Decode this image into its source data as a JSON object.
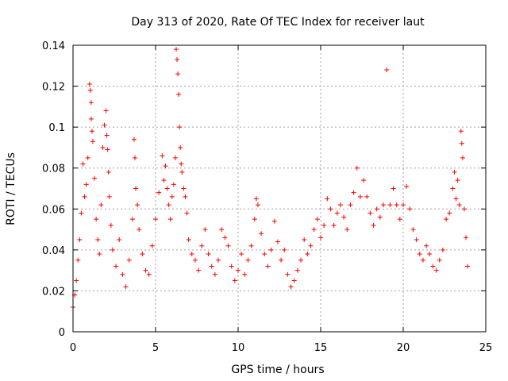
{
  "chart_data": {
    "type": "scatter",
    "title": "Day 313 of 2020, Rate Of TEC Index for receiver laut",
    "xlabel": "GPS time / hours",
    "ylabel": "ROTI / TECUs",
    "xlim": [
      0,
      25
    ],
    "ylim": [
      0,
      0.14
    ],
    "xticks": [
      0,
      5,
      10,
      15,
      20,
      25
    ],
    "xtick_labels": [
      "0",
      "5",
      "10",
      "15",
      "20",
      "25"
    ],
    "yticks": [
      0,
      0.02,
      0.04,
      0.06,
      0.08,
      0.1,
      0.12,
      0.14
    ],
    "ytick_labels": [
      "0",
      "0.02",
      "0.04",
      "0.06",
      "0.08",
      "0.1",
      "0.12",
      "0.14"
    ],
    "grid": true,
    "marker": "+",
    "color": "#ff0000",
    "series": [
      {
        "name": "ROTI",
        "points": [
          [
            0.0,
            0.012
          ],
          [
            0.1,
            0.018
          ],
          [
            0.2,
            0.025
          ],
          [
            0.3,
            0.035
          ],
          [
            0.4,
            0.045
          ],
          [
            0.5,
            0.058
          ],
          [
            0.6,
            0.082
          ],
          [
            0.7,
            0.066
          ],
          [
            0.8,
            0.072
          ],
          [
            0.9,
            0.085
          ],
          [
            1.0,
            0.121
          ],
          [
            1.05,
            0.118
          ],
          [
            1.1,
            0.104
          ],
          [
            1.1,
            0.112
          ],
          [
            1.15,
            0.098
          ],
          [
            1.2,
            0.093
          ],
          [
            1.3,
            0.075
          ],
          [
            1.4,
            0.055
          ],
          [
            1.5,
            0.045
          ],
          [
            1.6,
            0.038
          ],
          [
            1.7,
            0.062
          ],
          [
            1.8,
            0.09
          ],
          [
            1.9,
            0.101
          ],
          [
            2.0,
            0.108
          ],
          [
            2.05,
            0.096
          ],
          [
            2.1,
            0.089
          ],
          [
            2.15,
            0.078
          ],
          [
            2.2,
            0.066
          ],
          [
            2.3,
            0.052
          ],
          [
            2.4,
            0.04
          ],
          [
            2.6,
            0.032
          ],
          [
            2.8,
            0.045
          ],
          [
            3.0,
            0.028
          ],
          [
            3.2,
            0.022
          ],
          [
            3.4,
            0.035
          ],
          [
            3.6,
            0.055
          ],
          [
            3.7,
            0.094
          ],
          [
            3.75,
            0.085
          ],
          [
            3.8,
            0.07
          ],
          [
            3.9,
            0.062
          ],
          [
            4.0,
            0.05
          ],
          [
            4.2,
            0.038
          ],
          [
            4.4,
            0.03
          ],
          [
            4.6,
            0.028
          ],
          [
            4.8,
            0.042
          ],
          [
            5.0,
            0.055
          ],
          [
            5.2,
            0.068
          ],
          [
            5.4,
            0.086
          ],
          [
            5.5,
            0.074
          ],
          [
            5.6,
            0.081
          ],
          [
            5.7,
            0.07
          ],
          [
            5.8,
            0.062
          ],
          [
            5.9,
            0.055
          ],
          [
            6.0,
            0.066
          ],
          [
            6.1,
            0.072
          ],
          [
            6.2,
            0.085
          ],
          [
            6.25,
            0.138
          ],
          [
            6.3,
            0.133
          ],
          [
            6.35,
            0.126
          ],
          [
            6.4,
            0.116
          ],
          [
            6.45,
            0.1
          ],
          [
            6.5,
            0.09
          ],
          [
            6.55,
            0.082
          ],
          [
            6.6,
            0.078
          ],
          [
            6.7,
            0.07
          ],
          [
            6.8,
            0.066
          ],
          [
            6.9,
            0.058
          ],
          [
            7.0,
            0.045
          ],
          [
            7.2,
            0.038
          ],
          [
            7.4,
            0.035
          ],
          [
            7.6,
            0.03
          ],
          [
            7.8,
            0.042
          ],
          [
            8.0,
            0.05
          ],
          [
            8.2,
            0.038
          ],
          [
            8.4,
            0.032
          ],
          [
            8.6,
            0.028
          ],
          [
            8.8,
            0.035
          ],
          [
            9.0,
            0.05
          ],
          [
            9.2,
            0.046
          ],
          [
            9.4,
            0.042
          ],
          [
            9.6,
            0.032
          ],
          [
            9.8,
            0.025
          ],
          [
            10.0,
            0.03
          ],
          [
            10.2,
            0.038
          ],
          [
            10.4,
            0.028
          ],
          [
            10.6,
            0.035
          ],
          [
            10.8,
            0.042
          ],
          [
            11.0,
            0.055
          ],
          [
            11.1,
            0.065
          ],
          [
            11.2,
            0.062
          ],
          [
            11.4,
            0.048
          ],
          [
            11.6,
            0.038
          ],
          [
            11.8,
            0.032
          ],
          [
            12.0,
            0.04
          ],
          [
            12.2,
            0.054
          ],
          [
            12.4,
            0.044
          ],
          [
            12.6,
            0.035
          ],
          [
            12.8,
            0.04
          ],
          [
            13.0,
            0.028
          ],
          [
            13.2,
            0.022
          ],
          [
            13.4,
            0.025
          ],
          [
            13.6,
            0.03
          ],
          [
            13.8,
            0.035
          ],
          [
            14.0,
            0.045
          ],
          [
            14.2,
            0.038
          ],
          [
            14.4,
            0.042
          ],
          [
            14.6,
            0.05
          ],
          [
            14.8,
            0.055
          ],
          [
            15.0,
            0.046
          ],
          [
            15.2,
            0.052
          ],
          [
            15.4,
            0.065
          ],
          [
            15.6,
            0.06
          ],
          [
            15.8,
            0.052
          ],
          [
            16.0,
            0.058
          ],
          [
            16.2,
            0.062
          ],
          [
            16.4,
            0.056
          ],
          [
            16.6,
            0.05
          ],
          [
            16.8,
            0.062
          ],
          [
            17.0,
            0.068
          ],
          [
            17.2,
            0.08
          ],
          [
            17.4,
            0.066
          ],
          [
            17.6,
            0.074
          ],
          [
            17.8,
            0.066
          ],
          [
            18.0,
            0.058
          ],
          [
            18.2,
            0.052
          ],
          [
            18.4,
            0.06
          ],
          [
            18.6,
            0.056
          ],
          [
            18.8,
            0.062
          ],
          [
            19.0,
            0.128
          ],
          [
            19.2,
            0.062
          ],
          [
            19.4,
            0.07
          ],
          [
            19.6,
            0.062
          ],
          [
            19.8,
            0.055
          ],
          [
            20.0,
            0.062
          ],
          [
            20.2,
            0.071
          ],
          [
            20.4,
            0.06
          ],
          [
            20.6,
            0.05
          ],
          [
            20.8,
            0.045
          ],
          [
            21.0,
            0.038
          ],
          [
            21.2,
            0.035
          ],
          [
            21.4,
            0.042
          ],
          [
            21.6,
            0.038
          ],
          [
            21.8,
            0.032
          ],
          [
            22.0,
            0.03
          ],
          [
            22.2,
            0.035
          ],
          [
            22.4,
            0.04
          ],
          [
            22.6,
            0.055
          ],
          [
            22.8,
            0.058
          ],
          [
            23.0,
            0.07
          ],
          [
            23.1,
            0.078
          ],
          [
            23.2,
            0.065
          ],
          [
            23.3,
            0.074
          ],
          [
            23.4,
            0.062
          ],
          [
            23.5,
            0.098
          ],
          [
            23.55,
            0.092
          ],
          [
            23.6,
            0.085
          ],
          [
            23.7,
            0.06
          ],
          [
            23.8,
            0.046
          ],
          [
            23.9,
            0.032
          ]
        ]
      }
    ]
  }
}
